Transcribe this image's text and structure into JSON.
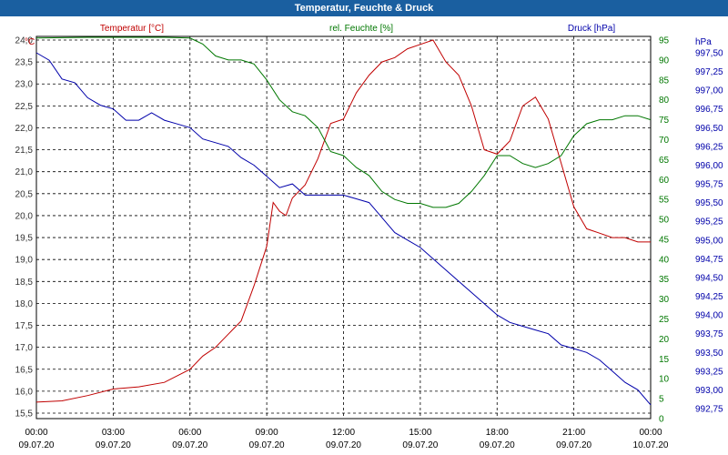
{
  "window": {
    "title": "Temperatur, Feuchte & Druck"
  },
  "colors": {
    "temperature": "#c00000",
    "humidity": "#007700",
    "pressure": "#0000aa",
    "title_bg": "#1a5fa0"
  },
  "chart_data": {
    "type": "line",
    "grid": true,
    "series_labels": [
      "Temperatur [°C]",
      "rel. Feuchte [%]",
      "Druck [hPa]"
    ],
    "axes": {
      "temperature": {
        "unit": "°C",
        "min": 15.5,
        "max": 24.0,
        "step": 0.5,
        "ticks": [
          "15,5",
          "16,0",
          "16,5",
          "17,0",
          "17,5",
          "18,0",
          "18,5",
          "19,0",
          "19,5",
          "20,0",
          "20,5",
          "21,0",
          "21,5",
          "22,0",
          "22,5",
          "23,0",
          "23,5",
          "24,0"
        ]
      },
      "humidity": {
        "unit": "%",
        "min": 0,
        "max": 95,
        "step": 5,
        "ticks": [
          "0",
          "5",
          "10",
          "15",
          "20",
          "25",
          "30",
          "35",
          "40",
          "45",
          "50",
          "55",
          "60",
          "65",
          "70",
          "75",
          "80",
          "85",
          "90",
          "95"
        ]
      },
      "pressure": {
        "unit": "hPa",
        "min": 992.75,
        "max": 997.5,
        "step": 0.25,
        "ticks": [
          "992,75",
          "993,00",
          "993,25",
          "993,50",
          "993,75",
          "994,00",
          "994,25",
          "994,50",
          "994,75",
          "995,00",
          "995,25",
          "995,50",
          "995,75",
          "996,00",
          "996,25",
          "996,50",
          "996,75",
          "997,00",
          "997,25",
          "997,50"
        ]
      }
    },
    "x_hours": [
      0,
      3,
      6,
      9,
      12,
      15,
      18,
      21,
      24
    ],
    "x_time_labels": [
      "00:00",
      "03:00",
      "06:00",
      "09:00",
      "12:00",
      "15:00",
      "18:00",
      "21:00",
      "00:00"
    ],
    "x_date_labels": [
      "09.07.20",
      "09.07.20",
      "09.07.20",
      "09.07.20",
      "09.07.20",
      "09.07.20",
      "09.07.20",
      "09.07.20",
      "10.07.20"
    ],
    "series": [
      {
        "name": "Temperatur [°C]",
        "axis": "temperature",
        "hours": [
          0,
          1,
          2,
          3,
          4,
          5,
          6,
          6.5,
          7,
          7.5,
          8,
          8.5,
          9,
          9.25,
          9.5,
          9.75,
          10,
          10.5,
          11,
          11.5,
          12,
          12.5,
          13,
          13.5,
          14,
          14.5,
          15,
          15.5,
          16,
          16.5,
          17,
          17.5,
          18,
          18.5,
          19,
          19.5,
          20,
          20.5,
          21,
          21.5,
          22,
          22.5,
          23,
          23.5,
          24
        ],
        "values": [
          15.75,
          15.78,
          15.9,
          16.05,
          16.1,
          16.2,
          16.5,
          16.8,
          17.0,
          17.3,
          17.6,
          18.4,
          19.3,
          20.3,
          20.1,
          20.0,
          20.4,
          20.7,
          21.3,
          22.1,
          22.2,
          22.8,
          23.2,
          23.5,
          23.6,
          23.8,
          23.9,
          24.0,
          23.5,
          23.2,
          22.5,
          21.5,
          21.4,
          21.7,
          22.5,
          22.7,
          22.2,
          21.2,
          20.2,
          19.7,
          19.6,
          19.5,
          19.5,
          19.4,
          19.4
        ]
      },
      {
        "name": "rel. Feuchte [%]",
        "axis": "humidity",
        "hours": [
          0,
          1,
          2,
          3,
          4,
          5,
          6,
          6.5,
          7,
          7.5,
          8,
          8.5,
          9,
          9.5,
          10,
          10.5,
          11,
          11.5,
          12,
          12.5,
          13,
          13.5,
          14,
          14.5,
          15,
          15.5,
          16,
          16.5,
          17,
          17.5,
          18,
          18.5,
          19,
          19.5,
          20,
          20.5,
          21,
          21.5,
          22,
          22.5,
          23,
          23.5,
          24
        ],
        "values": [
          95.5,
          95.6,
          96,
          96,
          96,
          96,
          95.5,
          94,
          91,
          90,
          90,
          89,
          85,
          80,
          77,
          76,
          73,
          67,
          66,
          63,
          61,
          57,
          55,
          54,
          54,
          53,
          53,
          54,
          57,
          61,
          66,
          66,
          64,
          63,
          64,
          66,
          71,
          74,
          75,
          75,
          76,
          76,
          75
        ]
      },
      {
        "name": "Druck [hPa]",
        "axis": "pressure",
        "hours": [
          0,
          0.5,
          1,
          1.5,
          2,
          2.5,
          3,
          3.5,
          4,
          4.5,
          5,
          5.5,
          6,
          6.5,
          7,
          7.5,
          8,
          8.5,
          9,
          9.5,
          10,
          10.5,
          11,
          11.5,
          12,
          12.5,
          13,
          13.5,
          14,
          14.5,
          15,
          15.5,
          16,
          16.5,
          17,
          17.5,
          18,
          18.5,
          19,
          19.5,
          20,
          20.5,
          21,
          21.5,
          22,
          22.5,
          23,
          23.5,
          24
        ],
        "values": [
          997.5,
          997.4,
          997.15,
          997.1,
          996.9,
          996.8,
          996.75,
          996.6,
          996.6,
          996.7,
          996.6,
          996.55,
          996.5,
          996.35,
          996.3,
          996.25,
          996.1,
          996.0,
          995.85,
          995.7,
          995.75,
          995.6,
          995.6,
          995.6,
          995.6,
          995.55,
          995.5,
          995.3,
          995.1,
          995.0,
          994.9,
          994.75,
          994.6,
          994.45,
          994.3,
          994.15,
          994.0,
          993.9,
          993.85,
          993.8,
          993.75,
          993.6,
          993.55,
          993.5,
          993.4,
          993.25,
          993.1,
          993.0,
          992.8
        ]
      }
    ]
  }
}
